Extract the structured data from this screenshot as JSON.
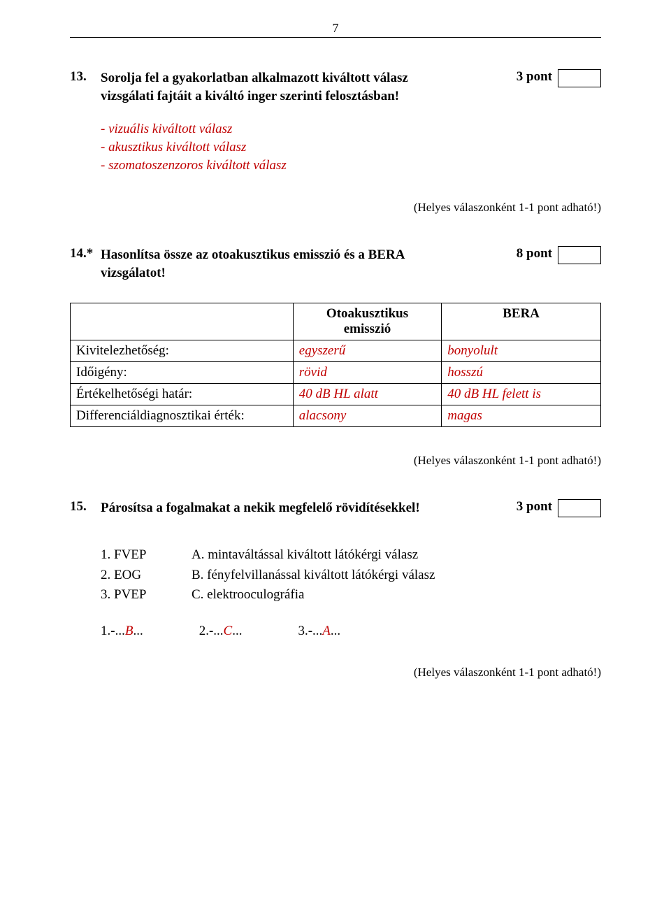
{
  "page_number": "7",
  "q13": {
    "number": "13.",
    "text_line1": "Sorolja fel a gyakorlatban alkalmazott kiváltott válasz",
    "text_line2": "vizsgálati fajtáit a kiváltó inger szerinti felosztásban!",
    "points": "3 pont",
    "answers": [
      "- vizuális kiváltott válasz",
      "- akusztikus kiváltott válasz",
      "- szomatoszenzoros kiváltott válasz"
    ],
    "scoring": "(Helyes válaszonként 1-1 pont adható!)"
  },
  "q14": {
    "number": "14.*",
    "text_line1": "Hasonlítsa össze az otoakusztikus emisszió és a BERA",
    "text_line2": "vizsgálatot!",
    "points": "8 pont",
    "table": {
      "header_col2_line1": "Otoakusztikus",
      "header_col2_line2": "emisszió",
      "header_col3": "BERA",
      "rows": [
        {
          "label": "Kivitelezhetőség:",
          "c2": "egyszerű",
          "c3": "bonyolult"
        },
        {
          "label": "Időigény:",
          "c2": "rövid",
          "c3": "hosszú"
        },
        {
          "label": "Értékelhetőségi határ:",
          "c2": "40 dB HL alatt",
          "c3": "40 dB HL felett is"
        },
        {
          "label": "Differenciáldiagnosztikai érték:",
          "c2": "alacsony",
          "c3": "magas"
        }
      ]
    },
    "scoring": "(Helyes válaszonként 1-1 pont adható!)"
  },
  "q15": {
    "number": "15.",
    "text": "Párosítsa a fogalmakat a nekik megfelelő rövidítésekkel!",
    "points": "3 pont",
    "pairs_left": [
      "1. FVEP",
      "2. EOG",
      "3. PVEP"
    ],
    "pairs_right": [
      "A. mintaváltással kiváltott látókérgi válasz",
      "B. fényfelvillanással kiváltott látókérgi válasz",
      "C. elektrooculográfia"
    ],
    "answers": [
      {
        "prefix": "1.-...",
        "val": "B",
        "suffix": "..."
      },
      {
        "prefix": "2.-...",
        "val": "C",
        "suffix": "..."
      },
      {
        "prefix": "3.-...",
        "val": "A",
        "suffix": "..."
      }
    ],
    "scoring": "(Helyes válaszonként 1-1 pont adható!)"
  },
  "colors": {
    "answer_red": "#c00000",
    "text_black": "#000000",
    "background": "#ffffff",
    "border": "#000000"
  }
}
